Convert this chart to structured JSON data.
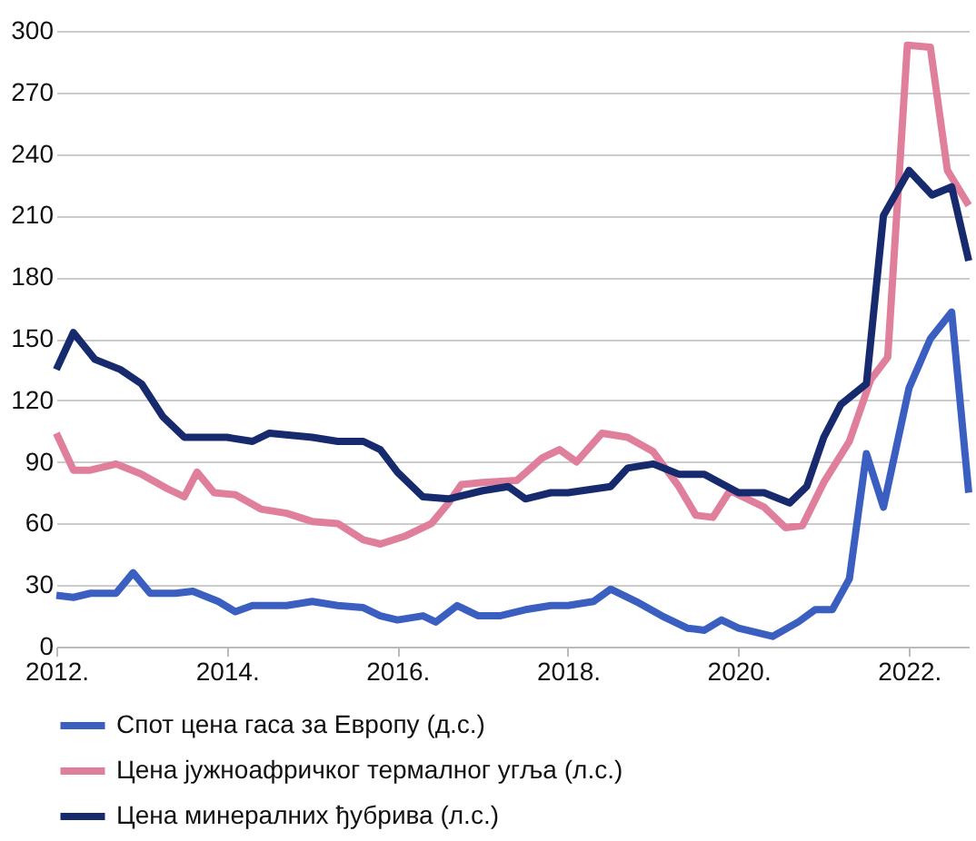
{
  "chart_data": {
    "type": "line",
    "xlim": [
      2012,
      2022.7
    ],
    "xticks": [
      {
        "value": 2012,
        "label": "2012."
      },
      {
        "value": 2014,
        "label": "2014."
      },
      {
        "value": 2016,
        "label": "2016."
      },
      {
        "value": 2018,
        "label": "2018."
      },
      {
        "value": 2020,
        "label": "2020."
      },
      {
        "value": 2022,
        "label": "2022."
      }
    ],
    "ylim": [
      0,
      300
    ],
    "yticks": [
      0,
      30,
      60,
      90,
      120,
      150,
      180,
      210,
      240,
      270,
      300
    ],
    "grid": "y",
    "legend": "bottom",
    "marker": "none",
    "line_style": "solid",
    "series": [
      {
        "name": "Спот цена гаса за Европу (д.с.)",
        "color": "#3a5fc0",
        "x": [
          2012.0,
          2012.2,
          2012.4,
          2012.7,
          2012.9,
          2013.1,
          2013.4,
          2013.6,
          2013.9,
          2014.1,
          2014.3,
          2014.7,
          2015.0,
          2015.3,
          2015.6,
          2015.8,
          2016.0,
          2016.3,
          2016.45,
          2016.7,
          2016.95,
          2017.2,
          2017.5,
          2017.8,
          2018.0,
          2018.3,
          2018.5,
          2018.8,
          2019.1,
          2019.4,
          2019.6,
          2019.8,
          2020.0,
          2020.2,
          2020.4,
          2020.7,
          2020.9,
          2021.1,
          2021.3,
          2021.5,
          2021.7,
          2022.0,
          2022.25,
          2022.5,
          2022.7
        ],
        "values": [
          25,
          24,
          26,
          26,
          36,
          26,
          26,
          27,
          22,
          17,
          20,
          20,
          22,
          20,
          19,
          15,
          13,
          15,
          12,
          20,
          15,
          15,
          18,
          20,
          20,
          22,
          28,
          22,
          15,
          9,
          8,
          13,
          9,
          7,
          5,
          12,
          18,
          18,
          33,
          94,
          68,
          126,
          150,
          163,
          75
        ]
      },
      {
        "name": "Цена јужноафричког термалног угља (л.с.)",
        "color": "#e07f9c",
        "x": [
          2012.0,
          2012.2,
          2012.4,
          2012.7,
          2013.0,
          2013.3,
          2013.5,
          2013.65,
          2013.85,
          2014.1,
          2014.4,
          2014.7,
          2015.0,
          2015.3,
          2015.6,
          2015.8,
          2016.1,
          2016.4,
          2016.6,
          2016.75,
          2017.0,
          2017.4,
          2017.7,
          2017.9,
          2018.1,
          2018.4,
          2018.7,
          2019.0,
          2019.3,
          2019.5,
          2019.7,
          2019.9,
          2020.3,
          2020.55,
          2020.75,
          2021.0,
          2021.3,
          2021.55,
          2021.75,
          2021.98,
          2022.25,
          2022.45,
          2022.7
        ],
        "values": [
          104,
          86,
          86,
          89,
          84,
          77,
          73,
          85,
          75,
          74,
          67,
          65,
          61,
          60,
          52,
          50,
          54,
          60,
          70,
          79,
          80,
          81,
          92,
          96,
          90,
          104,
          102,
          95,
          78,
          64,
          63,
          76,
          68,
          58,
          59,
          80,
          100,
          130,
          141,
          293,
          292,
          232,
          215
        ]
      },
      {
        "name": "Цена минералних ђубрива (л.с.)",
        "color": "#172a6e",
        "x": [
          2012.0,
          2012.2,
          2012.45,
          2012.75,
          2013.0,
          2013.25,
          2013.5,
          2014.0,
          2014.3,
          2014.5,
          2015.0,
          2015.3,
          2015.6,
          2015.8,
          2016.0,
          2016.3,
          2016.6,
          2017.0,
          2017.3,
          2017.5,
          2017.8,
          2018.0,
          2018.5,
          2018.7,
          2019.0,
          2019.3,
          2019.6,
          2020.0,
          2020.3,
          2020.6,
          2020.8,
          2021.0,
          2021.2,
          2021.5,
          2021.7,
          2022.0,
          2022.27,
          2022.5,
          2022.7
        ],
        "values": [
          135,
          153,
          140,
          135,
          128,
          112,
          102,
          102,
          100,
          104,
          102,
          100,
          100,
          96,
          85,
          73,
          72,
          76,
          78,
          72,
          75,
          75,
          78,
          87,
          89,
          84,
          84,
          75,
          75,
          70,
          78,
          102,
          118,
          128,
          210,
          232,
          220,
          224,
          188
        ]
      }
    ]
  }
}
